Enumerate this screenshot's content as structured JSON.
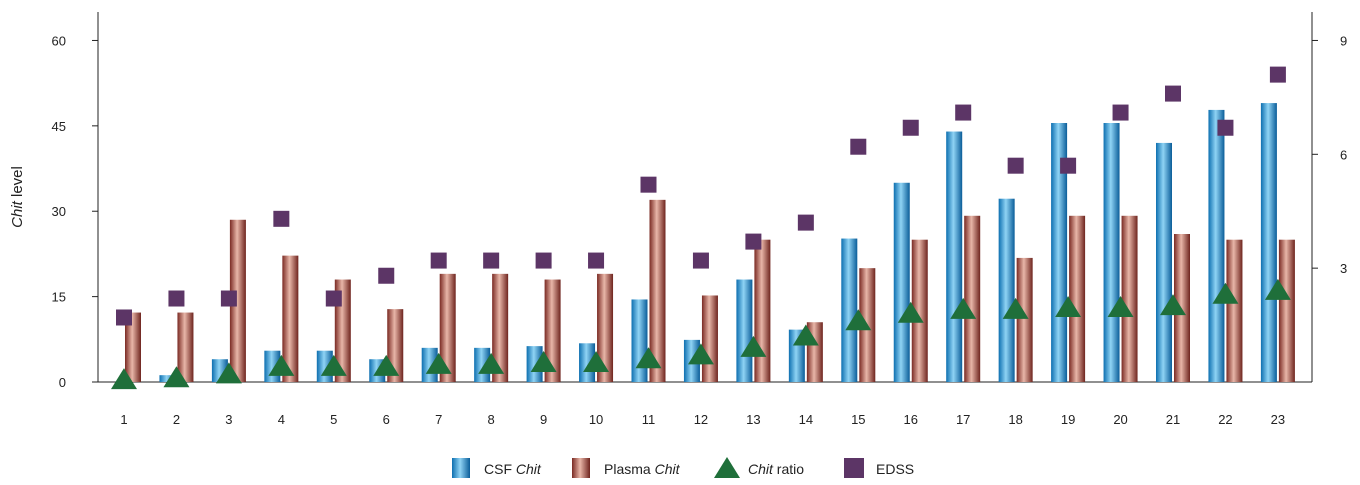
{
  "chart_data": {
    "type": "bar",
    "title": "",
    "xlabel": "",
    "ylabel": {
      "italic": "Chit",
      "rest": " level"
    },
    "y_left_range": [
      0,
      65
    ],
    "y_left_ticks": [
      "0",
      "15",
      "30",
      "45",
      "60"
    ],
    "y_right_range": [
      0,
      9.75
    ],
    "y_right_ticks": [
      "3",
      "6",
      "9"
    ],
    "grid": false,
    "legend_position": "bottom",
    "categories": [
      "1",
      "2",
      "3",
      "4",
      "5",
      "6",
      "7",
      "8",
      "9",
      "10",
      "11",
      "12",
      "13",
      "14",
      "15",
      "16",
      "17",
      "18",
      "19",
      "20",
      "21",
      "22",
      "23"
    ],
    "series": [
      {
        "id": "csf",
        "label": {
          "prefix": "CSF ",
          "italic": "Chit",
          "suffix": ""
        },
        "kind": "bar",
        "axis": "left",
        "color": "#2a9fd8",
        "values": [
          0,
          1.2,
          4,
          5.5,
          5.5,
          4,
          6,
          6,
          6.3,
          6.8,
          14.5,
          7.4,
          18,
          9.2,
          25.2,
          35,
          44,
          32.2,
          45.5,
          45.5,
          42,
          47.8,
          49
        ]
      },
      {
        "id": "plasma",
        "label": {
          "prefix": "Plasma ",
          "italic": "Chit",
          "suffix": ""
        },
        "kind": "bar",
        "axis": "left",
        "color": "#9a3b32",
        "values": [
          12.2,
          12.2,
          28.5,
          22.2,
          18,
          12.8,
          19,
          19,
          18,
          19,
          32,
          15.2,
          25,
          10.5,
          20,
          25,
          29.2,
          21.8,
          29.2,
          29.2,
          26,
          25,
          25
        ]
      },
      {
        "id": "ratio",
        "label": {
          "prefix": "",
          "italic": "Chit",
          "suffix": " ratio"
        },
        "kind": "triangle",
        "axis": "right",
        "color": "#1f6f3a",
        "values": [
          0.05,
          0.1,
          0.2,
          0.4,
          0.4,
          0.4,
          0.45,
          0.45,
          0.5,
          0.5,
          0.6,
          0.7,
          0.9,
          1.2,
          1.6,
          1.8,
          1.9,
          1.9,
          1.95,
          1.95,
          2.0,
          2.3,
          2.4
        ]
      },
      {
        "id": "edss",
        "label": {
          "prefix": "EDSS",
          "italic": "",
          "suffix": ""
        },
        "kind": "square",
        "axis": "right",
        "color": "#5c3566",
        "values": [
          1.7,
          2.2,
          2.2,
          4.3,
          2.2,
          2.8,
          3.2,
          3.2,
          3.2,
          3.2,
          5.2,
          3.2,
          3.7,
          4.2,
          6.2,
          6.7,
          7.1,
          5.7,
          5.7,
          7.1,
          7.6,
          6.7,
          8.1
        ]
      }
    ]
  }
}
